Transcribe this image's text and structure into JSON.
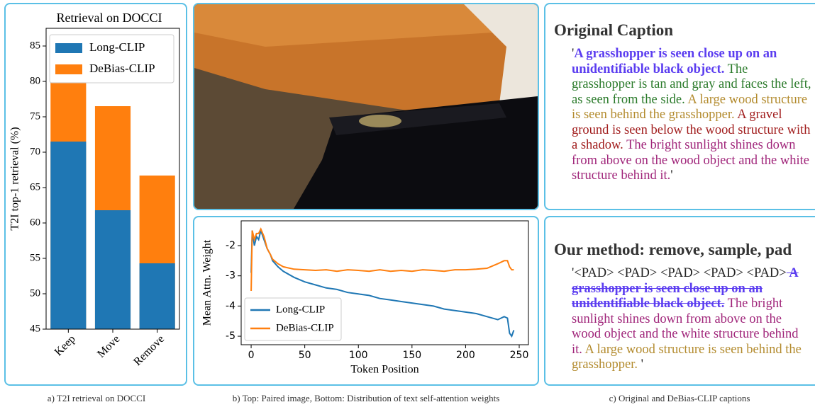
{
  "chart_data": [
    {
      "type": "bar",
      "title": "Retrieval on DOCCI",
      "ylabel": "T2I top-1 retrieval (%)",
      "categories": [
        "Keep",
        "Move",
        "Remove"
      ],
      "series": [
        {
          "name": "DeBias-CLIP",
          "color": "#ff7f0e",
          "values": [
            79.9,
            76.5,
            66.7
          ]
        },
        {
          "name": "Long-CLIP",
          "color": "#1f77b4",
          "values": [
            71.5,
            61.8,
            54.3
          ]
        }
      ],
      "legend_order": [
        "Long-CLIP",
        "DeBias-CLIP"
      ],
      "ylim": [
        45,
        87.5
      ],
      "yticks": [
        45,
        50,
        55,
        60,
        65,
        70,
        75,
        80,
        85
      ],
      "legend": "upper left"
    },
    {
      "type": "line",
      "xlabel": "Token Position",
      "ylabel": "Mean Attn. Weight",
      "x": [
        0,
        1,
        3,
        5,
        7,
        9,
        12,
        15,
        18,
        20,
        25,
        30,
        40,
        50,
        60,
        70,
        80,
        90,
        100,
        110,
        120,
        130,
        140,
        150,
        160,
        170,
        180,
        190,
        200,
        210,
        220,
        230,
        236,
        239,
        241,
        243,
        245
      ],
      "series": [
        {
          "name": "Long-CLIP",
          "color": "#1f77b4",
          "values": [
            -2.9,
            -1.5,
            -2.0,
            -1.7,
            -1.8,
            -1.5,
            -1.8,
            -2.1,
            -2.3,
            -2.5,
            -2.7,
            -2.85,
            -3.05,
            -3.2,
            -3.3,
            -3.4,
            -3.45,
            -3.55,
            -3.6,
            -3.65,
            -3.75,
            -3.8,
            -3.85,
            -3.9,
            -3.95,
            -4.0,
            -4.1,
            -4.15,
            -4.2,
            -4.25,
            -4.35,
            -4.45,
            -4.35,
            -4.4,
            -4.9,
            -5.0,
            -4.8
          ]
        },
        {
          "name": "DeBias-CLIP",
          "color": "#ff7f0e",
          "values": [
            -3.5,
            -1.5,
            -1.8,
            -1.6,
            -1.6,
            -1.45,
            -1.7,
            -2.1,
            -2.3,
            -2.45,
            -2.6,
            -2.7,
            -2.78,
            -2.8,
            -2.82,
            -2.8,
            -2.85,
            -2.8,
            -2.82,
            -2.85,
            -2.8,
            -2.85,
            -2.82,
            -2.85,
            -2.8,
            -2.82,
            -2.85,
            -2.8,
            -2.8,
            -2.78,
            -2.75,
            -2.6,
            -2.5,
            -2.5,
            -2.7,
            -2.8,
            -2.8
          ]
        }
      ],
      "xlim": [
        -9.3,
        258.6
      ],
      "ylim": [
        -5.28,
        -1.18
      ],
      "xticks": [
        0,
        50,
        100,
        150,
        200,
        250
      ],
      "yticks": [
        -2,
        -3,
        -4,
        -5
      ],
      "legend": "lower left"
    }
  ],
  "captions": [
    "a) T2I retrieval on DOCCI",
    "b) Top: Paired image, Bottom: Distribution of text self-attention weights",
    "c) Original and DeBias-CLIP captions"
  ],
  "text_panels": [
    {
      "title": "Original Caption",
      "segments": [
        {
          "text": "'",
          "color": "#222222"
        },
        {
          "text": "A grasshopper is seen close up on an unidentifiable black object.",
          "color": "#5b3df0",
          "bold": true
        },
        {
          "text": " The grasshopper is tan and gray and faces the left, as seen from the side.",
          "color": "#2a7a2a"
        },
        {
          "text": " A large wood structure is seen behind the grasshopper.",
          "color": "#b38b2e"
        },
        {
          "text": " A gravel ground is seen below the wood structure with a shadow.",
          "color": "#a11d1d"
        },
        {
          "text": " The bright sunlight shines down from above on the wood object and the white structure behind it.",
          "color": "#a0257a"
        },
        {
          "text": "'",
          "color": "#222222"
        }
      ]
    },
    {
      "title": "Our method: remove, sample, pad",
      "segments": [
        {
          "text": "'<PAD> <PAD> <PAD> <PAD> <PAD>",
          "color": "#222222"
        },
        {
          "text": " A grasshopper is seen close up on an unidentifiable black object.",
          "color": "#5b3df0",
          "bold": true,
          "strike": true
        },
        {
          "text": " The bright sunlight shines down from above on the wood object and the white structure behind it.",
          "color": "#a0257a"
        },
        {
          "text": " A large wood structure is seen behind the grasshopper.",
          "color": "#b38b2e"
        },
        {
          "text": " '",
          "color": "#222222"
        }
      ]
    }
  ]
}
